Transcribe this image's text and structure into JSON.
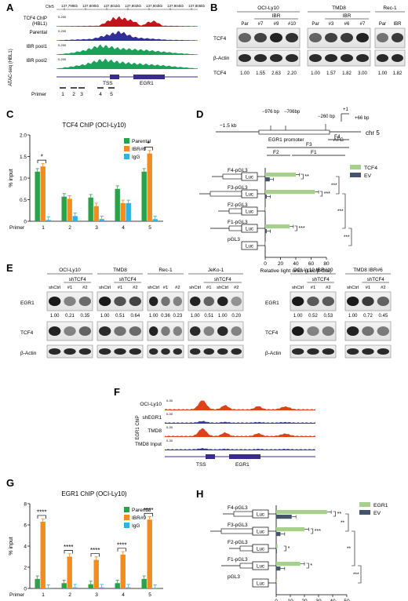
{
  "panels": {
    "A": {
      "letter": "A",
      "chr_label": "Chr5",
      "coords": [
        "137,799kb",
        "137,800kb",
        "137,801kb",
        "137,802kb",
        "137,803kb",
        "137,804kb",
        "137,805kb"
      ],
      "tracks": [
        {
          "label": "TCF4 ChIP",
          "label2": "(HBL1)",
          "scale": "0-200",
          "color": "#c2141b"
        },
        {
          "label": "Parental",
          "label2": "",
          "scale": "0-200",
          "color": "#2f2e9a"
        },
        {
          "label": "IBR pool1",
          "label2": "",
          "scale": "0-200",
          "color": "#1aa15a"
        },
        {
          "label": "IBR pool2",
          "label2": "",
          "scale": "0-200",
          "color": "#1aa15a"
        }
      ],
      "side_label": "ATAC-seq (HBL1)",
      "tss_label": "TSS",
      "gene_label": "EGR1",
      "primer_label": "Primer",
      "primers": [
        "1",
        "2",
        "3",
        "4",
        "5"
      ]
    },
    "B": {
      "letter": "B",
      "groups": [
        {
          "name": "OCI-Ly10",
          "sub": "IBR",
          "lanes": [
            "Par",
            "#7",
            "#9",
            "#10"
          ]
        },
        {
          "name": "TMD8",
          "sub": "IBR",
          "lanes": [
            "Par",
            "#3",
            "#6",
            "#7"
          ]
        },
        {
          "name": "Rec-1",
          "sub": "",
          "lanes": [
            "Par",
            "IBR"
          ]
        }
      ],
      "rows": [
        "TCF4",
        "β-Actin"
      ],
      "quant_label": "TCF4",
      "quant_values": [
        "1.00",
        "1.55",
        "2.63",
        "2.20",
        "1.00",
        "1.57",
        "1.82",
        "3.00",
        "1.00",
        "1.82"
      ]
    },
    "C": {
      "letter": "C",
      "chart_data": {
        "type": "bar",
        "title": "TCF4 ChIP (OCI-Ly10)",
        "ylabel": "% input",
        "xlabel": "Primer",
        "categories": [
          "1",
          "2",
          "3",
          "4",
          "5"
        ],
        "ylim": [
          0,
          2.0
        ],
        "yticks": [
          "0",
          "0.5",
          "1.0",
          "1.5",
          "2.0"
        ],
        "series": [
          {
            "name": "Parental",
            "color": "#2ba24a",
            "values": [
              1.15,
              0.57,
              0.55,
              0.75,
              1.15
            ]
          },
          {
            "name": "IBR#9",
            "color": "#f28c1e",
            "values": [
              1.27,
              0.52,
              0.35,
              0.42,
              1.57
            ]
          },
          {
            "name": "IgG",
            "color": "#2ab6e0",
            "values": [
              0.03,
              0.12,
              0.05,
              0.42,
              0.05
            ]
          }
        ],
        "significance": [
          "*",
          "",
          "",
          "",
          "*"
        ]
      }
    },
    "D": {
      "letter": "D",
      "map": {
        "left_pos": "−1.5 kb",
        "pos1": "−976 bp",
        "pos2": "−706bp",
        "pos3": "−260 bp",
        "pos4": "+1",
        "pos5": "+66 bp",
        "promoter": "EGR1 promoter",
        "atg": "ATG",
        "chr": "chr 5",
        "frags": [
          "F3",
          "F4",
          "F2",
          "F1"
        ]
      },
      "chart_data": {
        "type": "bar",
        "xlabel": "Relative light units (Luc/β-Gal)",
        "categories": [
          "F4-pGL3",
          "F3-pGL3",
          "F2-pGL3",
          "F1-pGL3",
          "pGL3"
        ],
        "xlim": [
          0,
          80
        ],
        "xticks": [
          "0",
          "20",
          "40",
          "60",
          "80"
        ],
        "series": [
          {
            "name": "TCF4",
            "color": "#a8d08d",
            "values": [
              40,
              65,
              0.5,
              32,
              0.5
            ]
          },
          {
            "name": "EV",
            "color": "#44546a",
            "values": [
              6,
              2,
              0.5,
              2,
              0.3
            ]
          }
        ],
        "significance": [
          "**",
          "***",
          "",
          "***",
          ""
        ],
        "bracket_sig": [
          "***",
          "***",
          "***"
        ]
      },
      "luc": "Luc"
    },
    "E": {
      "letter": "E",
      "blots": [
        {
          "name": "OCI-Ly10",
          "sub": "shTCF4",
          "lanes": [
            "shCtrl",
            "#1",
            "#2"
          ],
          "quant": [
            "1.00",
            "0.21",
            "0.35"
          ]
        },
        {
          "name": "TMD8",
          "sub": "shTCF4",
          "lanes": [
            "shCtrl",
            "#1",
            "#2"
          ],
          "quant": [
            "1.00",
            "0.51",
            "0.64"
          ]
        },
        {
          "name": "Rec-1",
          "sub": "",
          "lanes": [
            "shCtrl",
            "#1",
            "#2"
          ],
          "quant": [
            "1.00",
            "0.36",
            "0.23"
          ]
        },
        {
          "name": "JeKo-1",
          "sub": "shTCF4",
          "lanes": [
            "shCtrl",
            "#1",
            "shCtrl",
            "#2"
          ],
          "quant": [
            "1.00",
            "0.51",
            "1.00",
            "0.20"
          ]
        },
        {
          "name": "OCI-Ly10 IBR#10",
          "sub": "shTCF4",
          "lanes": [
            "shCtrl",
            "#1",
            "#2"
          ],
          "quant": [
            "1.00",
            "0.52",
            "0.53"
          ]
        },
        {
          "name": "TMD8 IBR#6",
          "sub": "shTCF4",
          "lanes": [
            "shCtrl",
            "#1",
            "#2"
          ],
          "quant": [
            "1.00",
            "0.72",
            "0.45"
          ]
        }
      ],
      "rows": [
        "EGR1",
        "TCF4",
        "β-Actin"
      ]
    },
    "F": {
      "letter": "F",
      "side_label": "EGR1 ChIP",
      "tracks": [
        {
          "label": "OCI-Ly10",
          "scale": "0-30",
          "color": "#e0401b"
        },
        {
          "label": "shEGR1",
          "scale": "0-30",
          "color": "#3a3aa0"
        },
        {
          "label": "TMD8",
          "scale": "0-30",
          "color": "#e0401b"
        },
        {
          "label": "TMD8 Input",
          "scale": "0-30",
          "color": "#3a3aa0"
        }
      ],
      "tss_label": "TSS",
      "gene_label": "EGR1"
    },
    "G": {
      "letter": "G",
      "chart_data": {
        "type": "bar",
        "title": "EGR1 ChIP (OCI-Ly10)",
        "ylabel": "% input",
        "xlabel": "Primer",
        "categories": [
          "1",
          "2",
          "3",
          "4",
          "5"
        ],
        "ylim": [
          0,
          8
        ],
        "yticks": [
          "0",
          "2",
          "4",
          "6",
          "8"
        ],
        "series": [
          {
            "name": "Parental",
            "color": "#2ba24a",
            "values": [
              0.9,
              0.5,
              0.4,
              0.5,
              0.9
            ]
          },
          {
            "name": "IBR#9",
            "color": "#f28c1e",
            "values": [
              6.3,
              3.0,
              2.7,
              3.2,
              6.5
            ]
          },
          {
            "name": "IgG",
            "color": "#2ab6e0",
            "values": [
              0.05,
              0.1,
              0.1,
              0.1,
              0.05
            ]
          }
        ],
        "significance": [
          "****",
          "****",
          "****",
          "****",
          "****"
        ]
      }
    },
    "H": {
      "letter": "H",
      "chart_data": {
        "type": "bar",
        "xlabel": "Relative light units (Luc/β-Gal)",
        "categories": [
          "F4-pGL3",
          "F3-pGL3",
          "F2-pGL3",
          "F1-pGL3",
          "pGL3"
        ],
        "xlim": [
          0,
          50
        ],
        "xticks": [
          "0",
          "10",
          "20",
          "30",
          "40",
          "50"
        ],
        "series": [
          {
            "name": "EGR1",
            "color": "#a8d08d",
            "values": [
              36,
              20,
              1,
              17,
              0.5
            ]
          },
          {
            "name": "EV",
            "color": "#44546a",
            "values": [
              11,
              3,
              0.5,
              3,
              0.3
            ]
          }
        ],
        "significance": [
          "**",
          "***",
          "*",
          "*",
          ""
        ],
        "bracket_sig": [
          "**",
          "**",
          "***"
        ]
      },
      "luc": "Luc"
    }
  }
}
